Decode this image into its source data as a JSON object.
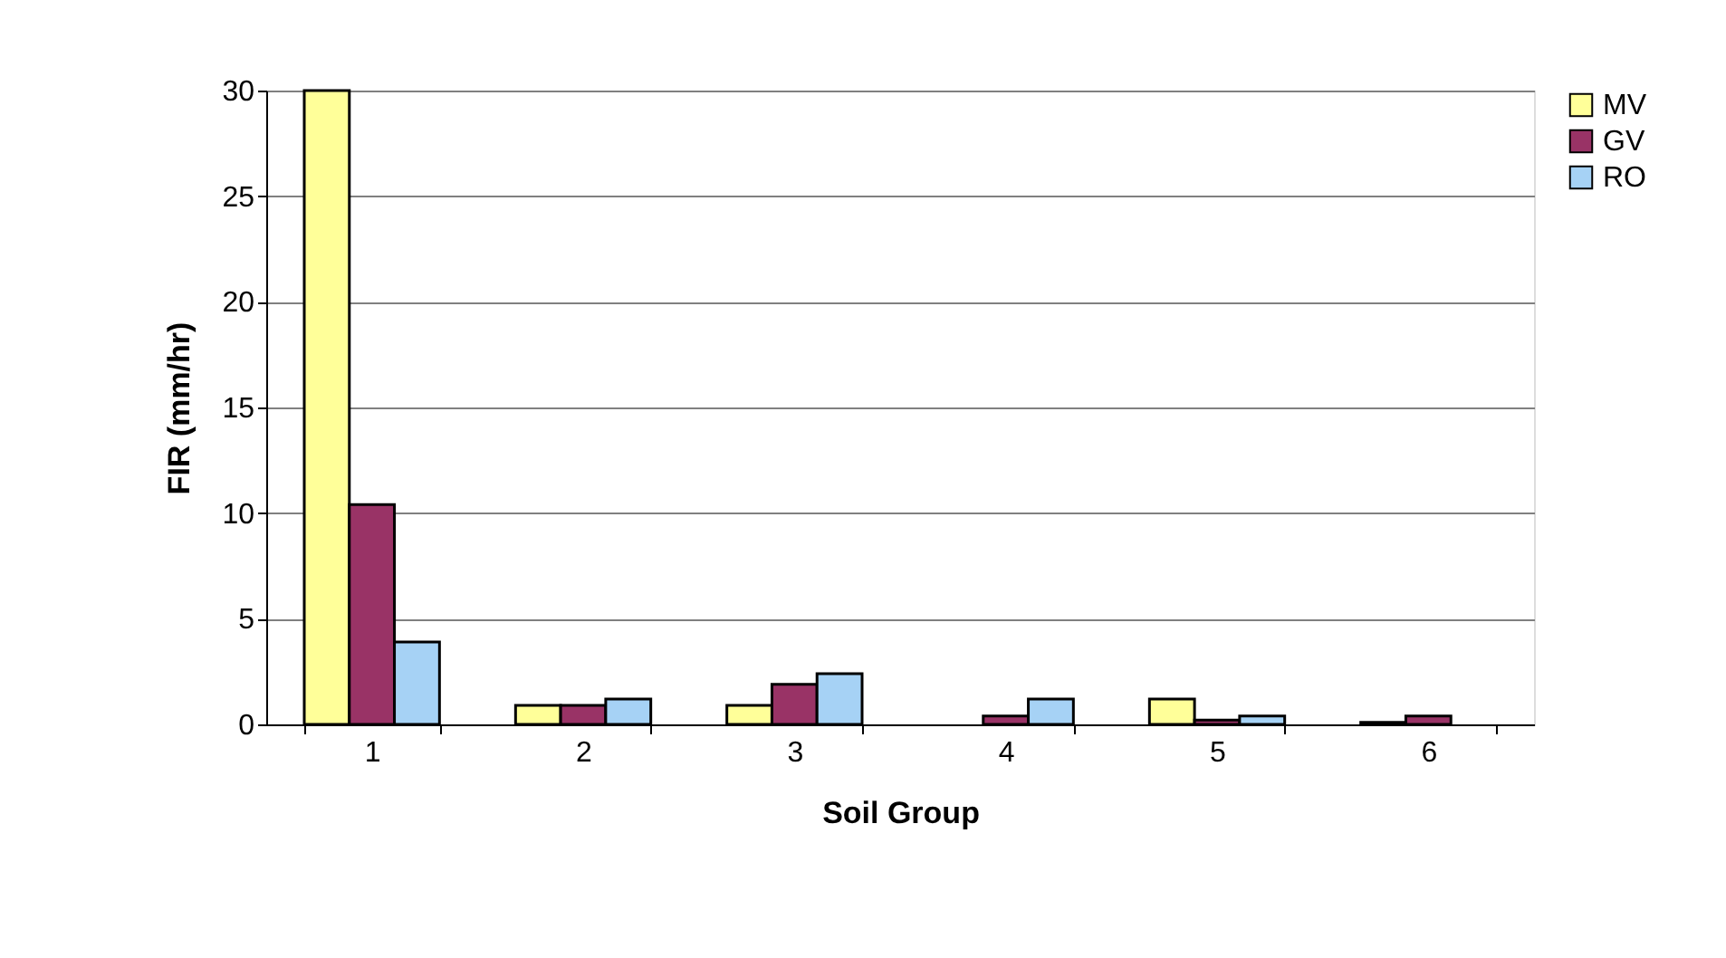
{
  "chart_data": {
    "type": "bar",
    "xlabel": "Soil Group",
    "ylabel": "FIR (mm/hr)",
    "categories": [
      "1",
      "2",
      "3",
      "4",
      "5",
      "6"
    ],
    "series": [
      {
        "name": "MV",
        "color": "#ffff99",
        "values": [
          30,
          0.9,
          0.9,
          null,
          1.2,
          0.1
        ]
      },
      {
        "name": "GV",
        "color": "#993366",
        "values": [
          10.4,
          0.9,
          1.9,
          0.4,
          0.2,
          0.4
        ]
      },
      {
        "name": "RO",
        "color": "#a6d2f5",
        "values": [
          3.9,
          1.2,
          2.4,
          1.2,
          0.4,
          null
        ]
      }
    ],
    "ylim": [
      0,
      30
    ],
    "yticks": [
      0,
      5,
      10,
      15,
      20,
      25,
      30
    ],
    "grid": "y",
    "legend": "right"
  }
}
